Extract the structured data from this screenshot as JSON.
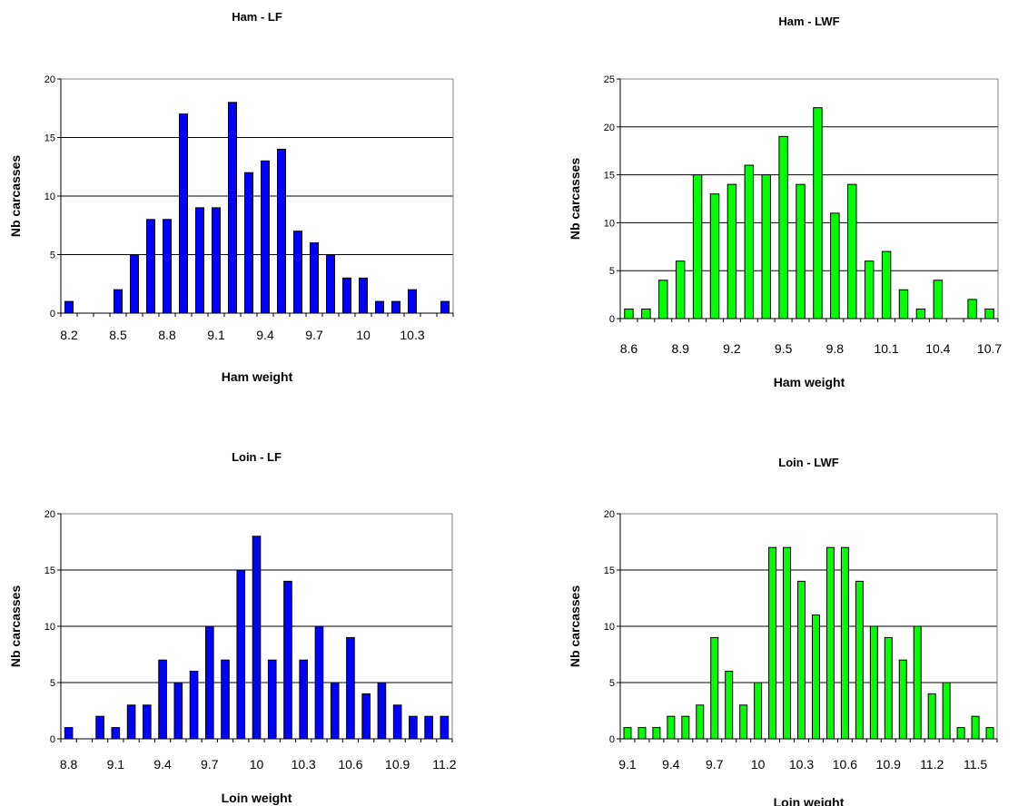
{
  "chart_data": [
    {
      "type": "bar",
      "title": "Ham - LF",
      "xlabel": "Ham weight",
      "ylabel": "Nb carcasses",
      "color": "#0000FF",
      "ylim": [
        0,
        20
      ],
      "yticks": [
        0,
        5,
        10,
        15,
        20
      ],
      "categories": [
        "8.2",
        "8.3",
        "8.4",
        "8.5",
        "8.6",
        "8.7",
        "8.8",
        "8.9",
        "9",
        "9.1",
        "9.2",
        "9.3",
        "9.4",
        "9.5",
        "9.6",
        "9.7",
        "9.8",
        "9.9",
        "10",
        "10.1",
        "10.2",
        "10.3",
        "10.4",
        "10.5"
      ],
      "values": [
        1,
        0,
        0,
        2,
        5,
        8,
        8,
        17,
        9,
        9,
        18,
        12,
        13,
        14,
        7,
        6,
        5,
        3,
        3,
        1,
        1,
        2,
        0,
        1
      ],
      "xticklabels": [
        "8.2",
        "8.5",
        "8.8",
        "9.1",
        "9.4",
        "9.7",
        "10",
        "10.3"
      ]
    },
    {
      "type": "bar",
      "title": "Ham - LWF",
      "xlabel": "Ham weight",
      "ylabel": "Nb carcasses",
      "color": "#00FF00",
      "ylim": [
        0,
        25
      ],
      "yticks": [
        0,
        5,
        10,
        15,
        20,
        25
      ],
      "categories": [
        "8.6",
        "8.7",
        "8.8",
        "8.9",
        "9",
        "9.1",
        "9.2",
        "9.3",
        "9.4",
        "9.5",
        "9.6",
        "9.7",
        "9.8",
        "9.9",
        "10",
        "10.1",
        "10.2",
        "10.3",
        "10.4",
        "10.5",
        "10.6",
        "10.7"
      ],
      "values": [
        1,
        1,
        4,
        6,
        15,
        13,
        14,
        16,
        15,
        19,
        14,
        22,
        11,
        14,
        6,
        7,
        3,
        1,
        4,
        0,
        2,
        1
      ],
      "xticklabels": [
        "8.6",
        "8.9",
        "9.2",
        "9.5",
        "9.8",
        "10.1",
        "10.4",
        "10.7"
      ]
    },
    {
      "type": "bar",
      "title": "Loin - LF",
      "xlabel": "Loin weight",
      "ylabel": "Nb carcasses",
      "color": "#0000FF",
      "ylim": [
        0,
        20
      ],
      "yticks": [
        0,
        5,
        10,
        15,
        20
      ],
      "categories": [
        "8.8",
        "8.9",
        "9",
        "9.1",
        "9.2",
        "9.3",
        "9.4",
        "9.5",
        "9.6",
        "9.7",
        "9.8",
        "9.9",
        "10",
        "10.1",
        "10.2",
        "10.3",
        "10.4",
        "10.5",
        "10.6",
        "10.7",
        "10.8",
        "10.9",
        "11",
        "11.1",
        "11.2"
      ],
      "values": [
        1,
        0,
        2,
        1,
        3,
        3,
        7,
        5,
        6,
        10,
        7,
        15,
        18,
        7,
        14,
        7,
        10,
        5,
        9,
        4,
        5,
        3,
        2,
        2,
        2
      ],
      "xticklabels": [
        "8.8",
        "9.1",
        "9.4",
        "9.7",
        "10",
        "10.3",
        "10.6",
        "10.9",
        "11.2"
      ]
    },
    {
      "type": "bar",
      "title": "Loin - LWF",
      "xlabel": "Loin weight",
      "ylabel": "Nb carcasses",
      "color": "#00FF00",
      "ylim": [
        0,
        20
      ],
      "yticks": [
        0,
        5,
        10,
        15,
        20
      ],
      "categories": [
        "9.1",
        "9.2",
        "9.3",
        "9.4",
        "9.5",
        "9.6",
        "9.7",
        "9.8",
        "9.9",
        "10",
        "10.1",
        "10.2",
        "10.3",
        "10.4",
        "10.5",
        "10.6",
        "10.7",
        "10.8",
        "10.9",
        "11",
        "11.1",
        "11.2",
        "11.3",
        "11.4",
        "11.5",
        "11.6"
      ],
      "values": [
        1,
        1,
        1,
        2,
        2,
        3,
        9,
        6,
        3,
        5,
        17,
        17,
        14,
        11,
        17,
        17,
        14,
        10,
        9,
        7,
        10,
        4,
        5,
        1,
        2,
        1
      ],
      "xticklabels": [
        "9.1",
        "9.4",
        "9.7",
        "10",
        "10.3",
        "10.6",
        "10.9",
        "11.2",
        "11.5"
      ]
    }
  ]
}
